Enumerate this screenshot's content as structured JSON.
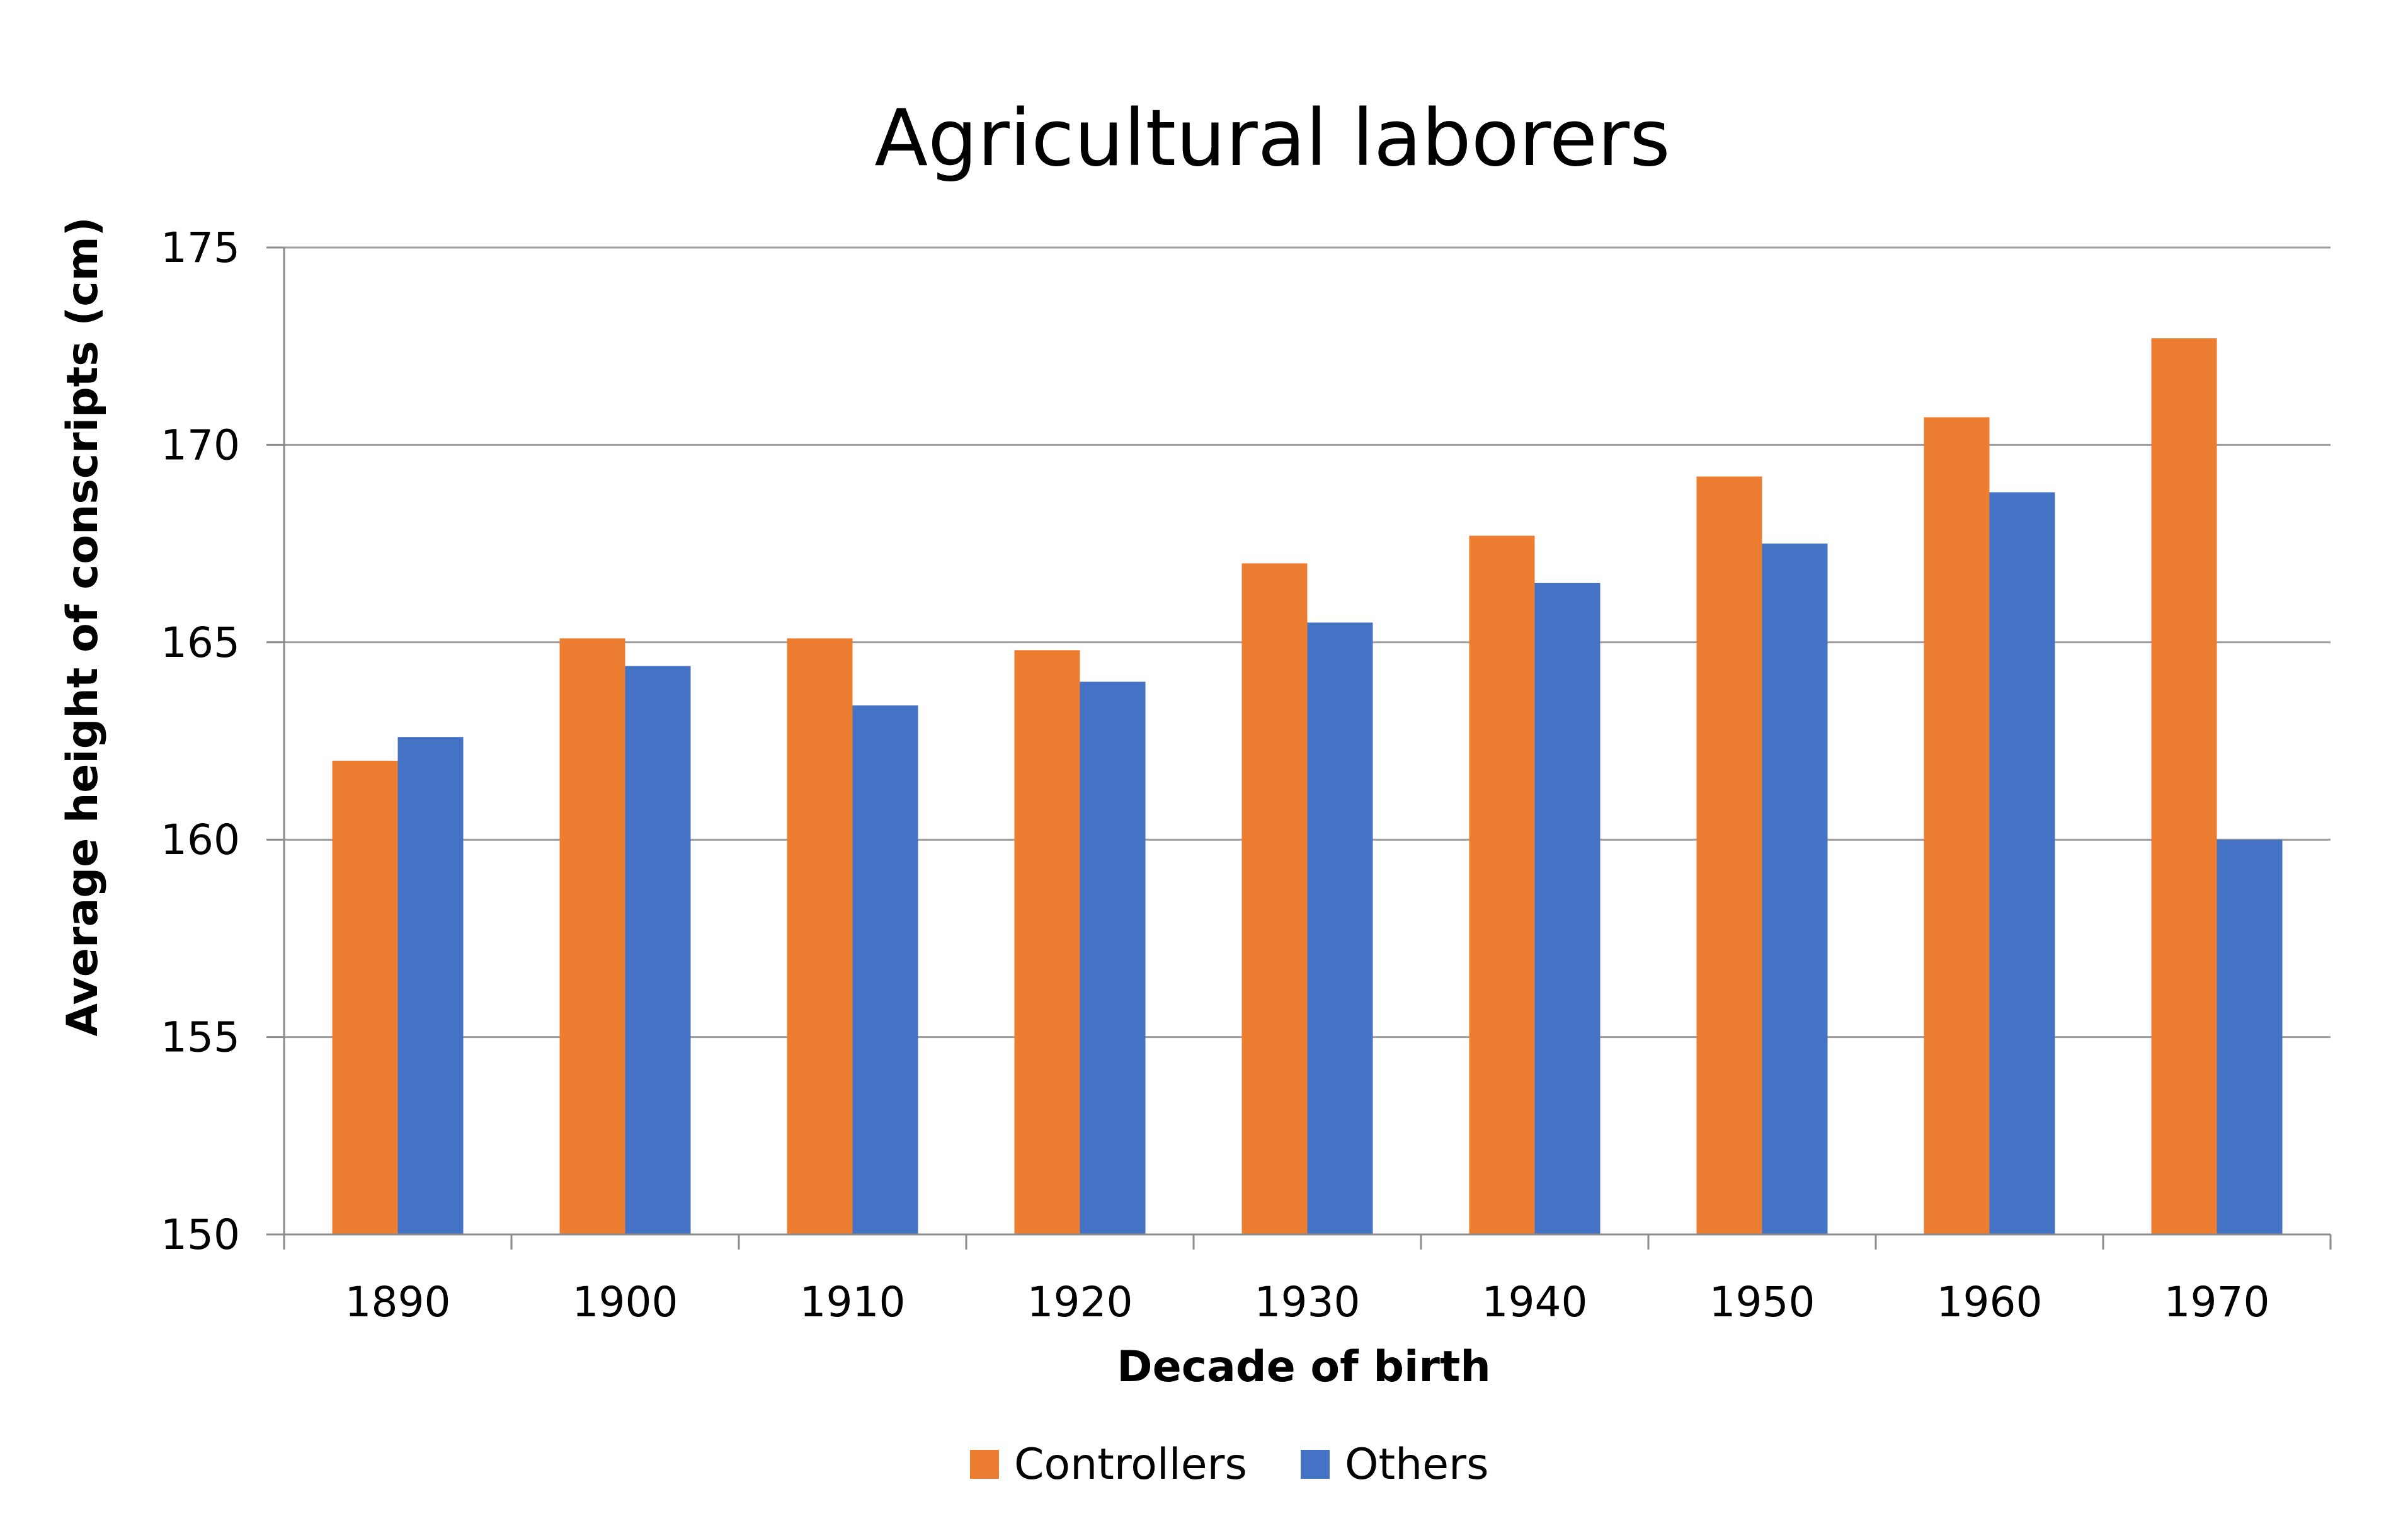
{
  "chart_data": {
    "type": "bar",
    "title": "Agricultural laborers",
    "xlabel": "Decade of birth",
    "ylabel": "Average height of conscripts (cm)",
    "categories": [
      "1890",
      "1900",
      "1910",
      "1920",
      "1930",
      "1940",
      "1950",
      "1960",
      "1970"
    ],
    "series": [
      {
        "name": "Controllers",
        "color": "#ED7D31",
        "values": [
          162.0,
          165.1,
          165.1,
          164.8,
          167.0,
          167.7,
          169.2,
          170.7,
          172.7
        ]
      },
      {
        "name": "Others",
        "color": "#4472C4",
        "values": [
          162.6,
          164.4,
          163.4,
          164.0,
          165.5,
          166.5,
          167.5,
          168.8,
          160.0
        ]
      }
    ],
    "ylim": [
      150,
      175
    ],
    "yticks": [
      "150",
      "155",
      "160",
      "165",
      "170",
      "175"
    ],
    "grid": true,
    "legend_position": "bottom"
  }
}
